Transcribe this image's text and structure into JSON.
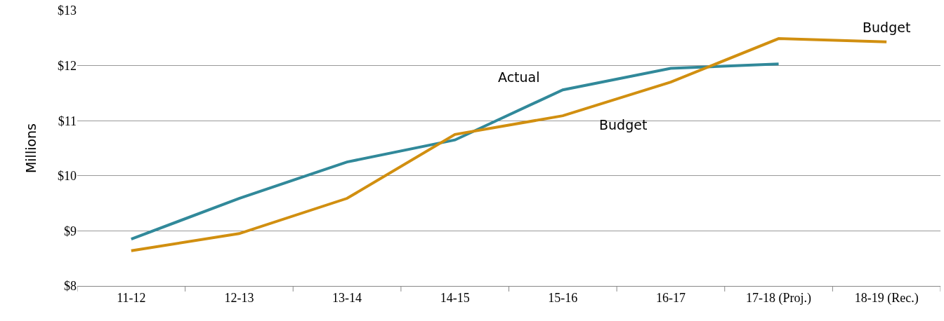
{
  "chart_data": {
    "type": "line",
    "ylabel": "Millions",
    "categories": [
      "11-12",
      "12-13",
      "13-14",
      "14-15",
      "15-16",
      "16-17",
      "17-18 (Proj.)",
      "18-19 (Rec.)"
    ],
    "series": [
      {
        "name": "Actual",
        "color": "#31899a",
        "values": [
          8.85,
          9.59,
          10.25,
          10.65,
          11.56,
          11.95,
          12.03,
          null
        ]
      },
      {
        "name": "Budget",
        "color": "#d18f10",
        "values": [
          8.64,
          8.95,
          9.59,
          10.75,
          11.09,
          11.7,
          12.49,
          12.43
        ]
      }
    ],
    "ylim": [
      8,
      13
    ],
    "yticks": [
      {
        "value": 8,
        "label": "$8"
      },
      {
        "value": 9,
        "label": "$9"
      },
      {
        "value": 10,
        "label": "$10"
      },
      {
        "value": 11,
        "label": "$11"
      },
      {
        "value": 12,
        "label": "$12"
      },
      {
        "value": 13,
        "label": "$13"
      }
    ],
    "grid": "y",
    "legend": false,
    "marker": "none",
    "line_style": "solid"
  }
}
